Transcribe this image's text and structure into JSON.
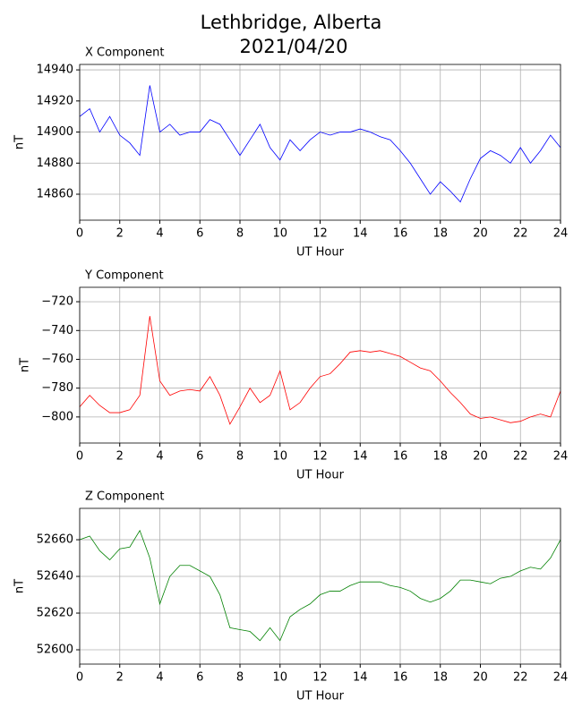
{
  "title": "Lethbridge, Alberta",
  "subtitle": "2021/04/20",
  "chart_data": [
    {
      "type": "line",
      "title": "X Component",
      "x_label": "UT Hour",
      "y_label": "nT",
      "color": "#0000ff",
      "grid": true,
      "x": [
        0,
        0.5,
        1,
        1.5,
        2,
        2.5,
        3,
        3.5,
        4,
        4.5,
        5,
        5.5,
        6,
        6.5,
        7,
        7.5,
        8,
        8.5,
        9,
        9.5,
        10,
        10.5,
        11,
        11.5,
        12,
        12.5,
        13,
        13.5,
        14,
        14.5,
        15,
        15.5,
        16,
        16.5,
        17,
        17.5,
        18,
        18.5,
        19,
        19.5,
        20,
        20.5,
        21,
        21.5,
        22,
        22.5,
        23,
        23.5,
        24
      ],
      "values": [
        14910,
        14915,
        14900,
        14910,
        14898,
        14893,
        14885,
        14930,
        14900,
        14905,
        14898,
        14900,
        14900,
        14908,
        14905,
        14895,
        14885,
        14895,
        14905,
        14890,
        14882,
        14895,
        14888,
        14895,
        14900,
        14898,
        14900,
        14900,
        14902,
        14900,
        14897,
        14895,
        14888,
        14880,
        14870,
        14860,
        14868,
        14862,
        14855,
        14870,
        14883,
        14888,
        14885,
        14880,
        14890,
        14880,
        14888,
        14898,
        14890
      ],
      "xlim": [
        0,
        24
      ],
      "xticks": [
        0,
        2,
        4,
        6,
        8,
        10,
        12,
        14,
        16,
        18,
        20,
        22,
        24
      ],
      "ylim": [
        14843.3,
        14943.5
      ],
      "yticks": [
        14860,
        14880,
        14900,
        14920,
        14940
      ]
    },
    {
      "type": "line",
      "title": "Y Component",
      "x_label": "UT Hour",
      "y_label": "nT",
      "color": "#ff0000",
      "grid": true,
      "x": [
        0,
        0.5,
        1,
        1.5,
        2,
        2.5,
        3,
        3.5,
        4,
        4.5,
        5,
        5.5,
        6,
        6.5,
        7,
        7.5,
        8,
        8.5,
        9,
        9.5,
        10,
        10.5,
        11,
        11.5,
        12,
        12.5,
        13,
        13.5,
        14,
        14.5,
        15,
        15.5,
        16,
        16.5,
        17,
        17.5,
        18,
        18.5,
        19,
        19.5,
        20,
        20.5,
        21,
        21.5,
        22,
        22.5,
        23,
        23.5,
        24
      ],
      "values": [
        -793,
        -785,
        -792,
        -797,
        -797,
        -795,
        -785,
        -730,
        -775,
        -785,
        -782,
        -781,
        -782,
        -772,
        -785,
        -805,
        -793,
        -780,
        -790,
        -785,
        -768,
        -795,
        -790,
        -780,
        -772,
        -770,
        -763,
        -755,
        -754,
        -755,
        -754,
        -756,
        -758,
        -762,
        -766,
        -768,
        -775,
        -783,
        -790,
        -798,
        -801,
        -800,
        -802,
        -804,
        -803,
        -800,
        -798,
        -800,
        -782
      ],
      "xlim": [
        0,
        24
      ],
      "xticks": [
        0,
        2,
        4,
        6,
        8,
        10,
        12,
        14,
        16,
        18,
        20,
        22,
        24
      ],
      "ylim": [
        -818.1,
        -710
      ],
      "yticks": [
        {
          "value": -800,
          "label": "−800"
        },
        {
          "value": -780,
          "label": "−780"
        },
        {
          "value": -760,
          "label": "−760"
        },
        {
          "value": -740,
          "label": "−740"
        },
        {
          "value": -720,
          "label": "−720"
        }
      ]
    },
    {
      "type": "line",
      "title": "Z Component",
      "x_label": "UT Hour",
      "y_label": "nT",
      "color": "#008000",
      "grid": true,
      "x": [
        0,
        0.5,
        1,
        1.5,
        2,
        2.5,
        3,
        3.5,
        4,
        4.5,
        5,
        5.5,
        6,
        6.5,
        7,
        7.5,
        8,
        8.5,
        9,
        9.5,
        10,
        10.5,
        11,
        11.5,
        12,
        12.5,
        13,
        13.5,
        14,
        14.5,
        15,
        15.5,
        16,
        16.5,
        17,
        17.5,
        18,
        18.5,
        19,
        19.5,
        20,
        20.5,
        21,
        21.5,
        22,
        22.5,
        23,
        23.5,
        24
      ],
      "values": [
        52660,
        52662,
        52654,
        52649,
        52655,
        52656,
        52665,
        52650,
        52625,
        52640,
        52646,
        52646,
        52643,
        52640,
        52630,
        52612,
        52611,
        52610,
        52605,
        52612,
        52605,
        52618,
        52622,
        52625,
        52630,
        52632,
        52632,
        52635,
        52637,
        52637,
        52637,
        52635,
        52634,
        52632,
        52628,
        52626,
        52628,
        52632,
        52638,
        52638,
        52637,
        52636,
        52639,
        52640,
        52643,
        52645,
        52644,
        52650,
        52660
      ],
      "xlim": [
        0,
        24
      ],
      "xticks": [
        0,
        2,
        4,
        6,
        8,
        10,
        12,
        14,
        16,
        18,
        20,
        22,
        24
      ],
      "ylim": [
        52592.2,
        52677.1
      ],
      "yticks": [
        52600,
        52620,
        52640,
        52660
      ]
    }
  ]
}
